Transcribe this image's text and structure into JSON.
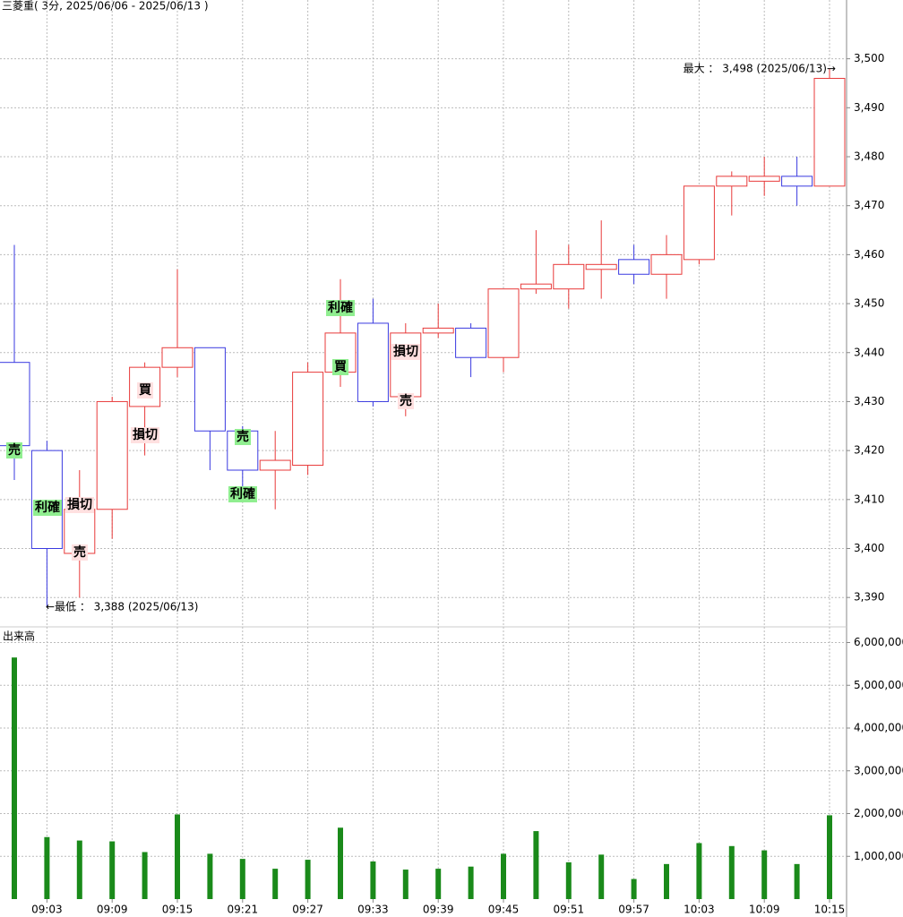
{
  "chart_data": [
    {
      "type": "candlestick",
      "title": "三菱重( 3分, 2025/06/06 - 2025/06/13 )",
      "up_color": "#e83a3a",
      "down_color": "#3a3ae0",
      "open": [
        3438,
        3420,
        3399,
        3408,
        3429,
        3437,
        3441,
        3424,
        3416,
        3417,
        3436,
        3446,
        3431,
        3444,
        3445,
        3439,
        3453,
        3453,
        3457,
        3459,
        3456,
        3459,
        3474,
        3475,
        3476,
        3474
      ],
      "high": [
        3462,
        3422,
        3416,
        3431,
        3438,
        3457,
        3441,
        3425,
        3424,
        3438,
        3455,
        3451,
        3446,
        3450,
        3446,
        3453,
        3465,
        3462,
        3467,
        3462,
        3464,
        3474,
        3477,
        3480,
        3480,
        3498
      ],
      "low": [
        3414,
        3388,
        3390,
        3402,
        3419,
        3435,
        3416,
        3412,
        3408,
        3415,
        3433,
        3429,
        3427,
        3443,
        3435,
        3436,
        3452,
        3449,
        3451,
        3454,
        3451,
        3458,
        3468,
        3472,
        3470,
        3474
      ],
      "close": [
        3421,
        3400,
        3408,
        3430,
        3437,
        3441,
        3424,
        3416,
        3418,
        3436,
        3444,
        3430,
        3444,
        3445,
        3439,
        3453,
        3454,
        3458,
        3458,
        3456,
        3460,
        3474,
        3476,
        3476,
        3474,
        3496
      ],
      "ylim": [
        3384,
        3512
      ],
      "yticks": [
        {
          "value": 3390,
          "label": "3,390"
        },
        {
          "value": 3400,
          "label": "3,400"
        },
        {
          "value": 3410,
          "label": "3,410"
        },
        {
          "value": 3420,
          "label": "3,420"
        },
        {
          "value": 3430,
          "label": "3,430"
        },
        {
          "value": 3440,
          "label": "3,440"
        },
        {
          "value": 3450,
          "label": "3,450"
        },
        {
          "value": 3460,
          "label": "3,460"
        },
        {
          "value": 3470,
          "label": "3,470"
        },
        {
          "value": 3480,
          "label": "3,480"
        },
        {
          "value": 3490,
          "label": "3,490"
        },
        {
          "value": 3500,
          "label": "3,500"
        }
      ],
      "grid": true,
      "max_label": "最大 ： 3,498 (2025/06/13)→",
      "min_label": "←最低 ： 3,388 (2025/06/13)",
      "annotations": [
        {
          "text": "売",
          "color": "#90ee90"
        },
        {
          "text": "利確",
          "color": "#90ee90"
        },
        {
          "text": "損切",
          "color": "#ffe0e0"
        },
        {
          "text": "売",
          "color": "#ffe0e0"
        },
        {
          "text": "買",
          "color": "#ffe0e0"
        },
        {
          "text": "損切",
          "color": "#ffe0e0"
        },
        {
          "text": "売",
          "color": "#90ee90"
        },
        {
          "text": "利確",
          "color": "#90ee90"
        },
        {
          "text": "利確",
          "color": "#90ee90"
        },
        {
          "text": "買",
          "color": "#90ee90"
        },
        {
          "text": "損切",
          "color": "#ffe0e0"
        },
        {
          "text": "売",
          "color": "#ffe0e0"
        }
      ]
    },
    {
      "type": "bar",
      "title": "出来高",
      "color": "#1a8a1a",
      "categories": [
        null,
        "09:03",
        null,
        "09:09",
        null,
        "09:15",
        null,
        "09:21",
        null,
        "09:27",
        null,
        "09:33",
        null,
        "09:39",
        null,
        "09:45",
        null,
        "09:51",
        null,
        "09:57",
        null,
        "10:03",
        null,
        "10:09",
        null,
        "10:15"
      ],
      "values": [
        5650000,
        1450000,
        1370000,
        1350000,
        1100000,
        1980000,
        1060000,
        940000,
        710000,
        920000,
        1670000,
        880000,
        690000,
        710000,
        760000,
        1060000,
        1590000,
        860000,
        1040000,
        470000,
        820000,
        1310000,
        1240000,
        1140000,
        820000,
        1960000
      ],
      "ylim": [
        0,
        6220000
      ],
      "yticks": [
        {
          "value": 1000000,
          "label": "1,000,000"
        },
        {
          "value": 2000000,
          "label": "2,000,000"
        },
        {
          "value": 3000000,
          "label": "3,000,000"
        },
        {
          "value": 4000000,
          "label": "4,000,000"
        },
        {
          "value": 5000000,
          "label": "5,000,000"
        },
        {
          "value": 6000000,
          "label": "6,000,000"
        }
      ],
      "grid": true
    }
  ]
}
